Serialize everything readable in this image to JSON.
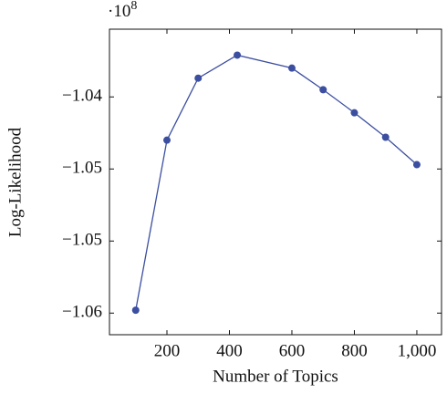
{
  "chart_data": {
    "type": "line",
    "x_label": "Number of Topics",
    "y_label": "Log-Likelihood",
    "y_multiplier": {
      "base": "·10",
      "exponent": "8"
    },
    "x": [
      100,
      200,
      300,
      425,
      600,
      700,
      800,
      900,
      1000
    ],
    "series": [
      {
        "color": "#3b4ea0",
        "values": [
          -1.0548,
          -1.043,
          -1.0387,
          -1.0371,
          -1.038,
          -1.0395,
          -1.0411,
          -1.0428,
          -1.0447
        ]
      }
    ],
    "xlim": [
      16,
      1079
    ],
    "ylim": [
      -1.0565,
      -1.0353
    ],
    "xticks": [
      200,
      400,
      600,
      800,
      {
        "value": 1000,
        "label": "1,000"
      }
    ],
    "yticks": [
      {
        "value": -1.04,
        "label": "−1.04"
      },
      {
        "value": -1.045,
        "label": "−1.05"
      },
      {
        "value": -1.05,
        "label": "−1.05"
      },
      {
        "value": -1.055,
        "label": "−1.06"
      }
    ]
  }
}
